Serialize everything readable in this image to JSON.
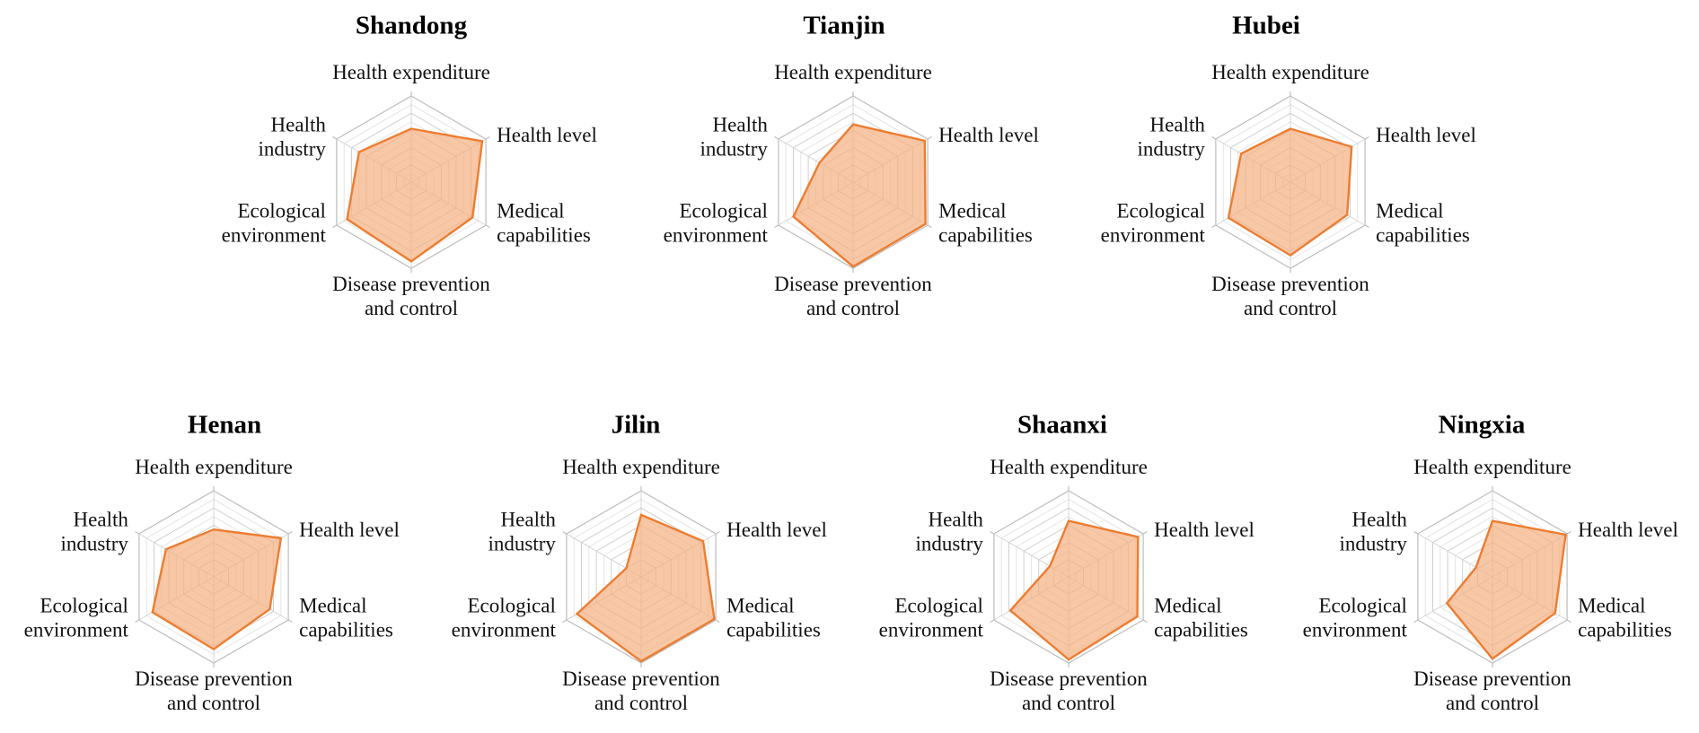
{
  "chart_data": [
    {
      "type": "radar",
      "title": "Shandong",
      "axes": [
        "Health expenditure",
        "Health level",
        "Medical capabilities",
        "Disease prevention and control",
        "Ecological environment",
        "Health industry"
      ],
      "values": [
        0.62,
        0.95,
        0.82,
        0.92,
        0.86,
        0.7
      ],
      "rmax": 1.0
    },
    {
      "type": "radar",
      "title": "Tianjin",
      "axes": [
        "Health expenditure",
        "Health level",
        "Medical capabilities",
        "Disease prevention and control",
        "Ecological environment",
        "Health industry"
      ],
      "values": [
        0.67,
        0.96,
        0.97,
        0.98,
        0.8,
        0.45
      ],
      "rmax": 1.0
    },
    {
      "type": "radar",
      "title": "Hubei",
      "axes": [
        "Health expenditure",
        "Health level",
        "Medical capabilities",
        "Disease prevention and control",
        "Ecological environment",
        "Health industry"
      ],
      "values": [
        0.62,
        0.82,
        0.76,
        0.85,
        0.83,
        0.66
      ],
      "rmax": 1.0
    },
    {
      "type": "radar",
      "title": "Henan",
      "axes": [
        "Health expenditure",
        "Health level",
        "Medical capabilities",
        "Disease prevention and control",
        "Ecological environment",
        "Health industry"
      ],
      "values": [
        0.55,
        0.9,
        0.75,
        0.84,
        0.82,
        0.64
      ],
      "rmax": 1.0
    },
    {
      "type": "radar",
      "title": "Jilin",
      "axes": [
        "Health expenditure",
        "Health level",
        "Medical capabilities",
        "Disease prevention and control",
        "Ecological environment",
        "Health industry"
      ],
      "values": [
        0.72,
        0.83,
        0.98,
        0.98,
        0.86,
        0.2
      ],
      "rmax": 1.0
    },
    {
      "type": "radar",
      "title": "Shaanxi",
      "axes": [
        "Health expenditure",
        "Health level",
        "Medical capabilities",
        "Disease prevention and control",
        "Ecological environment",
        "Health industry"
      ],
      "values": [
        0.65,
        0.93,
        0.92,
        0.96,
        0.78,
        0.25
      ],
      "rmax": 1.0
    },
    {
      "type": "radar",
      "title": "Ningxia",
      "axes": [
        "Health expenditure",
        "Health level",
        "Medical capabilities",
        "Disease prevention and control",
        "Ecological environment",
        "Health industry"
      ],
      "values": [
        0.65,
        0.98,
        0.84,
        0.95,
        0.61,
        0.22
      ],
      "rmax": 1.0
    }
  ],
  "style": {
    "fill_color": "#f4b183",
    "line_color": "#ed7d31",
    "grid_rings": 5
  }
}
